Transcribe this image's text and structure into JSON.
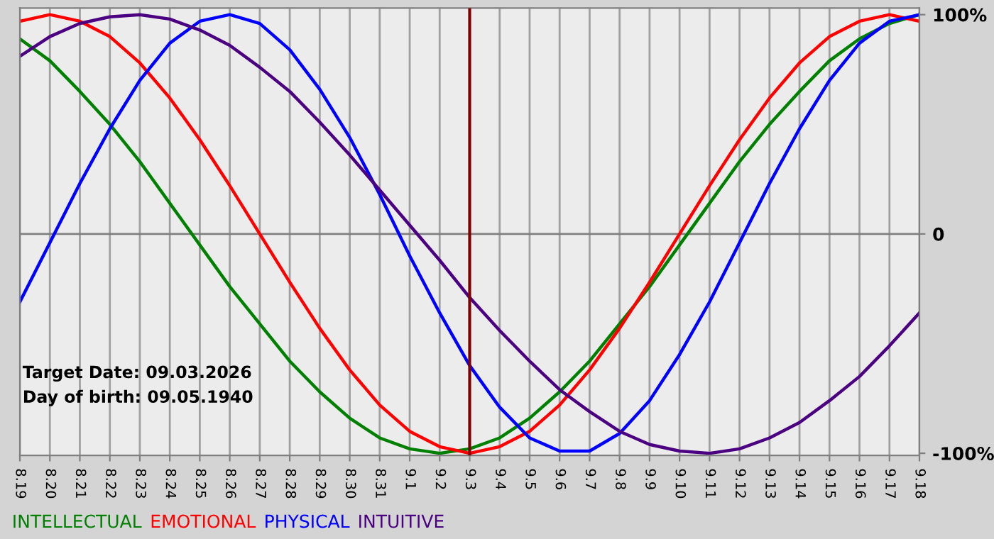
{
  "chart_data": {
    "type": "line",
    "categories": [
      "8.19",
      "8.20",
      "8.21",
      "8.22",
      "8.23",
      "8.24",
      "8.25",
      "8.26",
      "8.27",
      "8.28",
      "8.29",
      "8.30",
      "8.31",
      "9.1",
      "9.2",
      "9.3",
      "9.4",
      "9.5",
      "9.6",
      "9.7",
      "9.8",
      "9.9",
      "9.10",
      "9.11",
      "9.12",
      "9.13",
      "9.14",
      "9.15",
      "9.16",
      "9.17",
      "9.18"
    ],
    "series": [
      {
        "name": "INTELLECTUAL",
        "color": "#008000",
        "values": [
          89,
          79,
          65,
          50,
          33,
          14,
          -5,
          -24,
          -41,
          -58,
          -72,
          -84,
          -93,
          -98,
          -100,
          -98,
          -93,
          -84,
          -72,
          -58,
          -41,
          -24,
          -5,
          14,
          33,
          50,
          65,
          79,
          89,
          96,
          100
        ]
      },
      {
        "name": "EMOTIONAL",
        "color": "#ff0000",
        "values": [
          97,
          100,
          97,
          90,
          78,
          62,
          43,
          22,
          0,
          -22,
          -43,
          -62,
          -78,
          -90,
          -97,
          -100,
          -97,
          -90,
          -78,
          -62,
          -43,
          -22,
          0,
          22,
          43,
          62,
          78,
          90,
          97,
          100,
          97
        ]
      },
      {
        "name": "PHYSICAL",
        "color": "#0000ff",
        "values": [
          -31,
          -4,
          23,
          48,
          70,
          87,
          97,
          100,
          96,
          84,
          66,
          44,
          18,
          -10,
          -36,
          -60,
          -79,
          -93,
          -99,
          -99,
          -91,
          -76,
          -55,
          -31,
          -4,
          23,
          48,
          70,
          87,
          97,
          100
        ]
      },
      {
        "name": "INTUITIVE",
        "color": "#4b0082",
        "values": [
          81,
          90,
          96,
          99,
          100,
          98,
          93,
          86,
          76,
          65,
          51,
          36,
          20,
          4,
          -12,
          -29,
          -44,
          -58,
          -71,
          -81,
          -90,
          -96,
          -99,
          -100,
          -98,
          -93,
          -86,
          -76,
          -65,
          -51,
          -36
        ]
      }
    ],
    "ylim": [
      -101,
      103
    ],
    "yticks": [
      {
        "value": 100,
        "label": "100%"
      },
      0,
      {
        "value": -100,
        "label": "-100%"
      }
    ],
    "grid": "x",
    "legend": "bottom",
    "ref_lines": [
      {
        "axis": "y",
        "value": 0,
        "color": "#808080"
      },
      {
        "axis": "x",
        "value": "9.3",
        "color": "#800000"
      }
    ],
    "annotations": [
      "Target Date: 09.03.2026",
      "Day of birth: 09.05.1940"
    ]
  }
}
